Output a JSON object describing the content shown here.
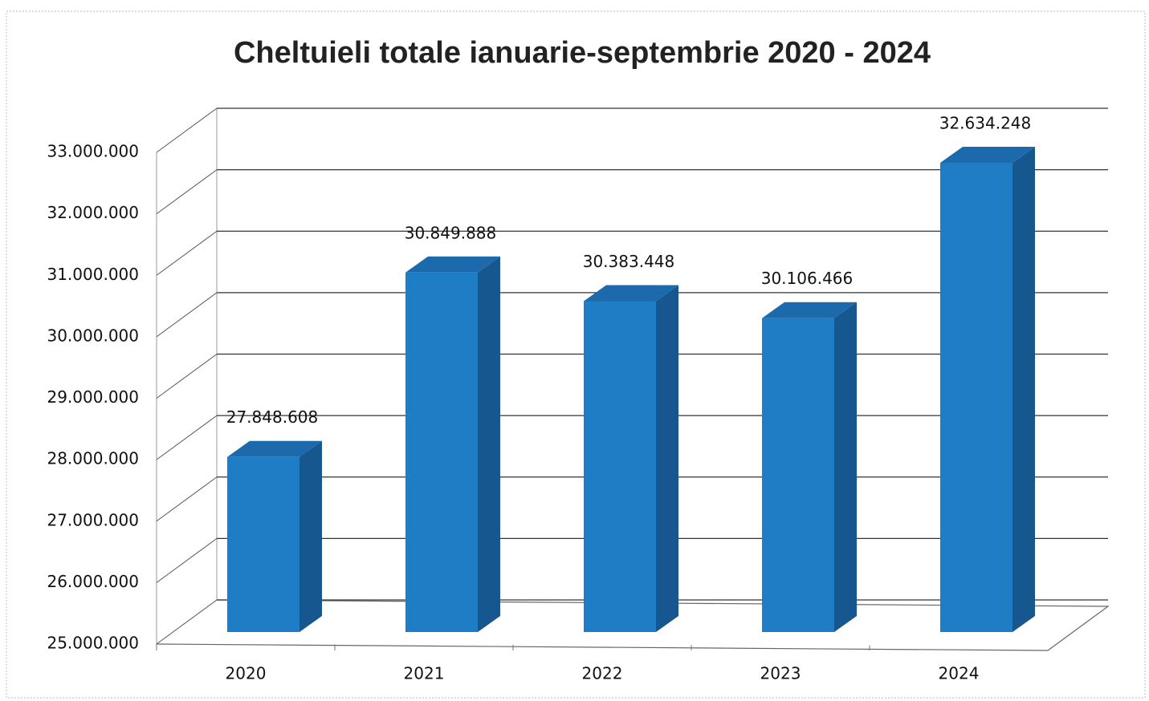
{
  "chart_data": {
    "type": "bar3d",
    "title": "Cheltuieli totale ianuarie-septembrie 2020 - 2024",
    "categories": [
      "2020",
      "2021",
      "2022",
      "2023",
      "2024"
    ],
    "values": [
      27848608,
      30849888,
      30383448,
      30106466,
      32634248
    ],
    "value_labels": [
      "27.848.608",
      "30.849.888",
      "30.383.448",
      "30.106.466",
      "32.634.248"
    ],
    "color": "#1f7dc6",
    "ylim": [
      25000000,
      33000000
    ],
    "yticks": [
      {
        "value": 25000000,
        "label": "25.000.000"
      },
      {
        "value": 26000000,
        "label": "26.000.000"
      },
      {
        "value": 27000000,
        "label": "27.000.000"
      },
      {
        "value": 28000000,
        "label": "28.000.000"
      },
      {
        "value": 29000000,
        "label": "29.000.000"
      },
      {
        "value": 30000000,
        "label": "30.000.000"
      },
      {
        "value": 31000000,
        "label": "31.000.000"
      },
      {
        "value": 32000000,
        "label": "32.000.000"
      },
      {
        "value": 33000000,
        "label": "33.000.000"
      }
    ],
    "grid": true
  }
}
